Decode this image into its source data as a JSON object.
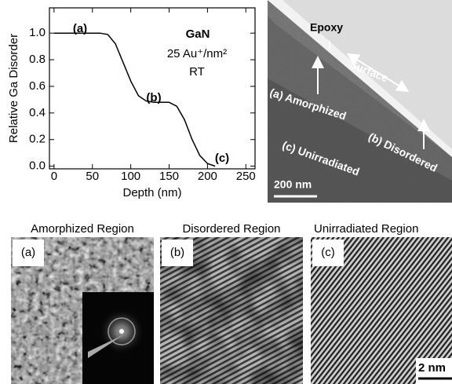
{
  "chart_data": {
    "type": "line",
    "xlabel": "Depth (nm)",
    "ylabel": "Relative Ga Disorder",
    "x": [
      0,
      60,
      70,
      80,
      90,
      100,
      110,
      120,
      130,
      150,
      160,
      170,
      180,
      190,
      200,
      210
    ],
    "values": [
      1.0,
      1.0,
      0.99,
      0.92,
      0.78,
      0.64,
      0.53,
      0.49,
      0.48,
      0.48,
      0.45,
      0.35,
      0.2,
      0.08,
      0.02,
      0.0
    ],
    "color": "#000000",
    "xlim": [
      -6,
      262
    ],
    "ylim": [
      -0.02,
      1.19
    ],
    "xticks": [
      0,
      50,
      100,
      150,
      200,
      250
    ],
    "yticks": [
      {
        "value": 0,
        "label": "0.0"
      },
      {
        "value": 0.2,
        "label": "0.2"
      },
      {
        "value": 0.4,
        "label": "0.4"
      },
      {
        "value": 0.6,
        "label": "0.6"
      },
      {
        "value": 0.8,
        "label": "0.8"
      },
      {
        "value": 1,
        "label": "1.0"
      }
    ],
    "annotations": [
      "(a)",
      "(b)",
      "(c)",
      "GaN",
      "25 Au⁺/nm²",
      "RT"
    ]
  },
  "tem_overview": {
    "epoxy": "Epoxy",
    "surface": "Surface",
    "amorphized": "(a) Amorphized",
    "disordered": "(b) Disordered",
    "unirradiated": "(c) Unirradiated",
    "scale_bar": "200 nm"
  },
  "hrtem_panels": [
    {
      "title": "Amorphized Region",
      "label": "(a)"
    },
    {
      "title": "Disordered Region",
      "label": "(b)"
    },
    {
      "title": "Unirradiated Region",
      "label": "(c)",
      "scale_bar": "2 nm"
    }
  ]
}
